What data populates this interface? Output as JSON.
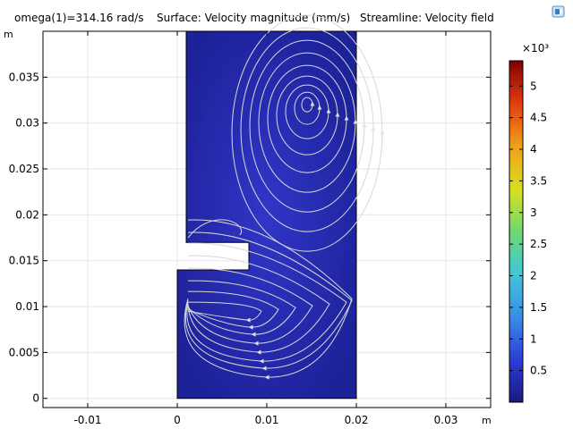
{
  "title": {
    "parameter": "omega(1)=314.16 rad/s",
    "surface": "Surface: Velocity magnitude (mm/s)",
    "streamline": "Streamline: Velocity field"
  },
  "icon": "comsol-logo-icon",
  "chart_data": {
    "type": "heatmap",
    "title": "omega(1)=314.16 rad/s   Surface: Velocity magnitude (mm/s)   Streamline: Velocity field",
    "xlabel": "m",
    "ylabel": "m",
    "xlim": [
      -0.015,
      0.035
    ],
    "ylim": [
      -0.001,
      0.04
    ],
    "x_ticks": [
      -0.01,
      0,
      0.01,
      0.02,
      0.03
    ],
    "x_tick_labels": [
      "-0.01",
      "0",
      "0.01",
      "0.02",
      "0.03"
    ],
    "y_ticks": [
      0,
      0.005,
      0.01,
      0.015,
      0.02,
      0.025,
      0.03,
      0.035
    ],
    "y_tick_labels": [
      "0",
      "0.005",
      "0.01",
      "0.015",
      "0.02",
      "0.025",
      "0.03",
      "0.035"
    ],
    "grid": true,
    "domain_outline": [
      [
        0,
        0
      ],
      [
        0.02,
        0
      ],
      [
        0.02,
        0.04
      ],
      [
        0.001,
        0.04
      ],
      [
        0.001,
        0.017
      ],
      [
        0.008,
        0.017
      ],
      [
        0.008,
        0.014
      ],
      [
        0,
        0.014
      ]
    ],
    "surface_value_typical": 300,
    "colorbar": {
      "label": "×10³",
      "min": 0,
      "max": 5.4,
      "ticks": [
        0.5,
        1,
        1.5,
        2,
        2.5,
        3,
        3.5,
        4,
        4.5,
        5
      ],
      "tick_labels": [
        "0.5",
        "1",
        "1.5",
        "2",
        "2.5",
        "3",
        "3.5",
        "4",
        "4.5",
        "5"
      ],
      "colormap": [
        "#1a1a80",
        "#2a3bd6",
        "#3aa0e8",
        "#44d0c8",
        "#9ad840",
        "#f0e020",
        "#f08a18",
        "#d82a10",
        "#800000"
      ]
    },
    "streamlines": {
      "upper_vortex_center": [
        0.0145,
        0.032
      ],
      "lower_vortex_center": [
        0.008,
        0.0095
      ],
      "color": "#dcdcdc"
    }
  }
}
